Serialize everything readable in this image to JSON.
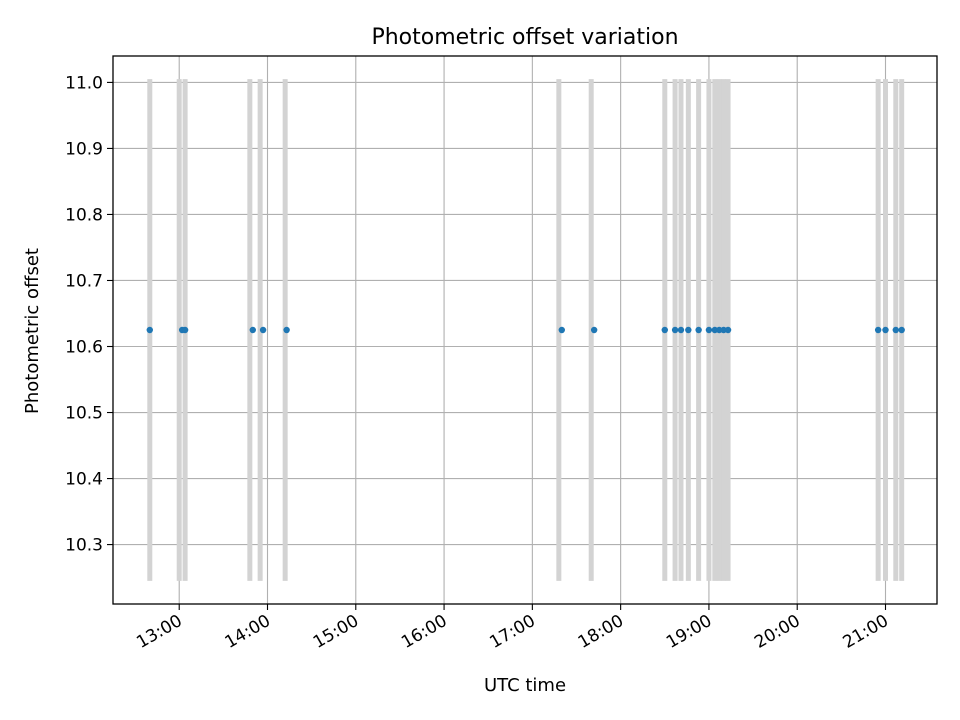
{
  "chart_data": {
    "type": "scatter",
    "title": "Photometric offset variation",
    "xlabel": "UTC time",
    "ylabel": "Photometric offset",
    "date": "",
    "xlim": [
      "12:15",
      "21:35"
    ],
    "ylim": [
      10.21,
      11.04
    ],
    "xticks": [
      "13:00",
      "14:00",
      "15:00",
      "16:00",
      "17:00",
      "18:00",
      "19:00",
      "20:00",
      "21:00"
    ],
    "yticks": [
      "10.3",
      "10.4",
      "10.5",
      "10.6",
      "10.7",
      "10.8",
      "10.9",
      "11.0"
    ],
    "grid": true,
    "point_color": "#1f77b4",
    "band_color": "#d3d3d3",
    "band_range": [
      10.245,
      11.005
    ],
    "bands": [
      "12:40",
      "13:00",
      "13:04",
      "13:48",
      "13:55",
      "14:12",
      "17:18",
      "17:40",
      "18:30",
      "18:37",
      "18:41",
      "18:46",
      "18:53",
      "19:00",
      "19:04",
      "19:07",
      "19:10",
      "19:13",
      "20:55",
      "21:00",
      "21:07",
      "21:11"
    ],
    "points": [
      {
        "x": "12:40",
        "y": 10.625
      },
      {
        "x": "13:02",
        "y": 10.625
      },
      {
        "x": "13:04",
        "y": 10.625
      },
      {
        "x": "13:50",
        "y": 10.625
      },
      {
        "x": "13:57",
        "y": 10.625
      },
      {
        "x": "14:13",
        "y": 10.625
      },
      {
        "x": "17:20",
        "y": 10.625
      },
      {
        "x": "17:42",
        "y": 10.625
      },
      {
        "x": "18:30",
        "y": 10.625
      },
      {
        "x": "18:37",
        "y": 10.625
      },
      {
        "x": "18:41",
        "y": 10.625
      },
      {
        "x": "18:46",
        "y": 10.625
      },
      {
        "x": "18:53",
        "y": 10.625
      },
      {
        "x": "19:00",
        "y": 10.625
      },
      {
        "x": "19:04",
        "y": 10.625
      },
      {
        "x": "19:07",
        "y": 10.625
      },
      {
        "x": "19:10",
        "y": 10.625
      },
      {
        "x": "19:13",
        "y": 10.625
      },
      {
        "x": "20:55",
        "y": 10.625
      },
      {
        "x": "21:00",
        "y": 10.625
      },
      {
        "x": "21:07",
        "y": 10.625
      },
      {
        "x": "21:11",
        "y": 10.625
      }
    ]
  }
}
